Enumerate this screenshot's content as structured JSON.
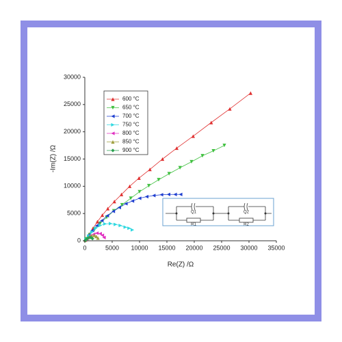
{
  "chart_data": {
    "type": "scatter",
    "xlabel": "Re(Z) /Ω",
    "ylabel": "-Im(Z) /Ω",
    "xlim": [
      0,
      35000
    ],
    "ylim": [
      0,
      30000
    ],
    "xticks": [
      0,
      5000,
      10000,
      15000,
      20000,
      25000,
      30000,
      35000
    ],
    "yticks": [
      0,
      5000,
      10000,
      15000,
      20000,
      25000,
      30000
    ],
    "legend": "upper left",
    "series": [
      {
        "name": "600 °C",
        "color": "#e03030",
        "marker": "triangle-up",
        "x": [
          300,
          800,
          1500,
          2300,
          3200,
          4200,
          5400,
          6700,
          8200,
          9900,
          11900,
          14200,
          16800,
          19800,
          23100,
          26500,
          30300
        ],
        "values": [
          400,
          1200,
          2300,
          3500,
          4700,
          5900,
          7200,
          8500,
          10000,
          11500,
          13100,
          15000,
          17000,
          19200,
          21700,
          24200,
          27100
        ]
      },
      {
        "name": "650 °C",
        "color": "#40c040",
        "marker": "triangle-down",
        "x": [
          300,
          900,
          1800,
          2800,
          4000,
          5300,
          6800,
          8400,
          10000,
          11700,
          13500,
          15400,
          17400,
          19500,
          21500,
          23500,
          25500
        ],
        "values": [
          350,
          1100,
          2100,
          3200,
          4300,
          5500,
          6600,
          7800,
          9000,
          10100,
          11200,
          12300,
          13400,
          14500,
          15600,
          16500,
          17500
        ]
      },
      {
        "name": "700 °C",
        "color": "#1f3fd0",
        "marker": "triangle-left",
        "x": [
          200,
          700,
          1400,
          2200,
          3100,
          4100,
          5200,
          6300,
          7500,
          8700,
          10000,
          11300,
          12600,
          14000,
          15300,
          16500,
          17500
        ],
        "values": [
          300,
          1000,
          1900,
          2800,
          3700,
          4600,
          5400,
          6100,
          6800,
          7300,
          7800,
          8100,
          8300,
          8450,
          8500,
          8500,
          8500
        ]
      },
      {
        "name": "750 °C",
        "color": "#30d8e0",
        "marker": "triangle-right",
        "x": [
          200,
          700,
          1300,
          2000,
          2800,
          3700,
          4700,
          5600,
          6500,
          7400,
          8100,
          8700
        ],
        "values": [
          300,
          900,
          1600,
          2300,
          2800,
          3100,
          3150,
          3000,
          2800,
          2500,
          2300,
          2000
        ]
      },
      {
        "name": "800 °C",
        "color": "#e030c0",
        "marker": "triangle-left",
        "x": [
          100,
          500,
          1000,
          1600,
          2200,
          2800,
          3200,
          3500
        ],
        "values": [
          100,
          500,
          900,
          1200,
          1400,
          1300,
          1000,
          600
        ]
      },
      {
        "name": "850 °C",
        "color": "#a0a040",
        "marker": "triangle-up",
        "x": [
          100,
          400,
          800,
          1200,
          1700,
          2100,
          2400
        ],
        "values": [
          100,
          400,
          700,
          900,
          1000,
          800,
          500
        ]
      },
      {
        "name": "900 °C",
        "color": "#2aa050",
        "marker": "diamond",
        "x": [
          50,
          250,
          500,
          800,
          1100,
          1400
        ],
        "values": [
          50,
          250,
          450,
          600,
          600,
          400
        ]
      }
    ],
    "inset_labels": [
      "Q1",
      "R1",
      "Q2",
      "R2"
    ]
  }
}
